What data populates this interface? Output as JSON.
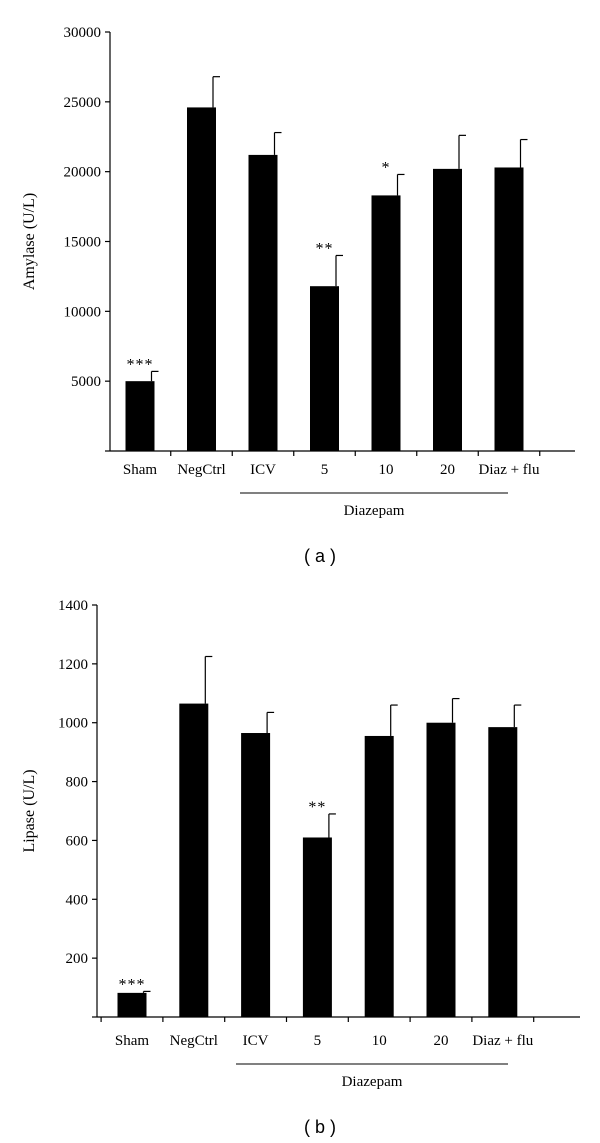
{
  "chart_data": [
    {
      "type": "bar",
      "panel_label": "( a )",
      "ylabel": "Amylase (U/L)",
      "ylim": [
        0,
        30000
      ],
      "yticks": [
        5000,
        10000,
        15000,
        20000,
        25000,
        30000
      ],
      "ytick_labels": [
        "5000",
        "10000",
        "15000",
        "20000",
        "25000",
        "30000"
      ],
      "categories": [
        "Sham",
        "NegCtrl",
        "ICV",
        "5",
        "10",
        "20",
        "Diaz + flu"
      ],
      "values": [
        5000,
        24600,
        21200,
        11800,
        18300,
        20200,
        20300
      ],
      "errors": [
        700,
        2200,
        1600,
        2200,
        1500,
        2400,
        2000
      ],
      "significance": [
        "***",
        "",
        "",
        "**",
        "*",
        "",
        ""
      ],
      "group_label": "Diazepam",
      "group_span": [
        "ICV",
        "Diaz + flu"
      ],
      "bar_color": "#000000"
    },
    {
      "type": "bar",
      "panel_label": "( b )",
      "ylabel": "Lipase (U/L)",
      "ylim": [
        0,
        1400
      ],
      "yticks": [
        200,
        400,
        600,
        800,
        1000,
        1200,
        1400
      ],
      "ytick_labels": [
        "200",
        "400",
        "600",
        "800",
        "1000",
        "1200",
        "1400"
      ],
      "categories": [
        "Sham",
        "NegCtrl",
        "ICV",
        "5",
        "10",
        "20",
        "Diaz + flu"
      ],
      "values": [
        82,
        1065,
        965,
        610,
        955,
        1000,
        985
      ],
      "errors": [
        5,
        160,
        70,
        80,
        105,
        82,
        75
      ],
      "significance": [
        "***",
        "**",
        "",
        "",
        "",
        "",
        ""
      ],
      "significance_fix": [
        "***",
        "",
        "",
        "**",
        "",
        "",
        ""
      ],
      "group_label": "Diazepam",
      "group_span": [
        "ICV",
        "Diaz + flu"
      ],
      "bar_color": "#000000"
    }
  ]
}
